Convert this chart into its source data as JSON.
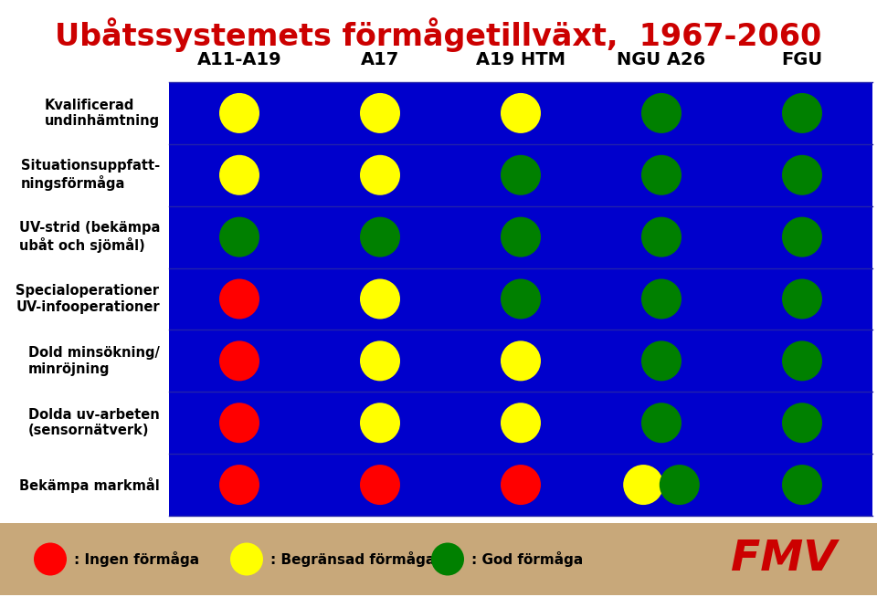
{
  "title": "Ubåtssystemets förmågetillväxt,  1967-2060",
  "title_color": "#cc0000",
  "bg_color": "#ffffff",
  "table_bg": "#0000cc",
  "footer_bg": "#c8a87a",
  "columns": [
    "A11-A19",
    "A17",
    "A19 HTM",
    "NGU A26",
    "FGU"
  ],
  "rows": [
    "Kvalificerad\nundinhämtning",
    "Situationsuppfatt-\nningsförmåga",
    "UV-strid (bekämpa\nubåt och sjömål)",
    "Specialoperationer\nUV-infooperationer",
    "Dold minsökning/\nminröjning",
    "Dolda uv-arbeten\n(sensornätverk)",
    "Bekämpa markmål"
  ],
  "dots": [
    [
      "yellow",
      "yellow",
      "yellow",
      "green",
      "green"
    ],
    [
      "yellow",
      "yellow",
      "green",
      "green",
      "green"
    ],
    [
      "green",
      "green",
      "green",
      "green",
      "green"
    ],
    [
      "red",
      "yellow",
      "green",
      "green",
      "green"
    ],
    [
      "red",
      "yellow",
      "yellow",
      "green",
      "green"
    ],
    [
      "red",
      "yellow",
      "yellow",
      "green",
      "green"
    ],
    [
      "red",
      "red",
      "red",
      "yellow",
      "green"
    ]
  ],
  "dot_colors": {
    "red": "#ff0000",
    "yellow": "#ffff00",
    "green": "#008000"
  },
  "last_row_double": true,
  "legend_items": [
    {
      "color": "#ff0000",
      "label": ": Ingen förmåga"
    },
    {
      "color": "#ffff00",
      "label": ": Begränsad förmåga"
    },
    {
      "color": "#008000",
      "label": ": God förmåga"
    }
  ],
  "separator_color": "#2222aa",
  "col_header_fontsize": 14,
  "row_label_fontsize": 10.5
}
